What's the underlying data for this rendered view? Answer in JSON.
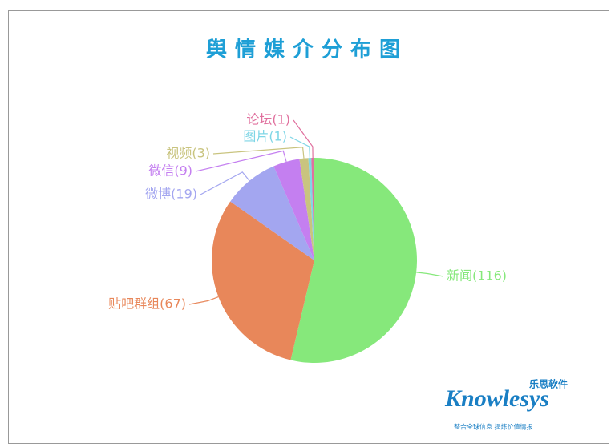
{
  "chart_data": {
    "type": "pie",
    "title": "舆情媒介分布图",
    "categories": [
      "新闻(116)",
      "贴吧群组(67)",
      "微博(19)",
      "微信(9)",
      "视频(3)",
      "图片(1)",
      "论坛(1)"
    ],
    "values": [
      116,
      67,
      19,
      9,
      3,
      1,
      1
    ],
    "colors": [
      "#86e87b",
      "#e8875a",
      "#a3a6f0",
      "#c47ff0",
      "#c9c47f",
      "#7fd6e6",
      "#e0709e"
    ]
  },
  "logo": {
    "brand": "Knowlesys",
    "brand_cn": "乐思软件",
    "slogan": "整合全球信息 提炼价值情报"
  }
}
